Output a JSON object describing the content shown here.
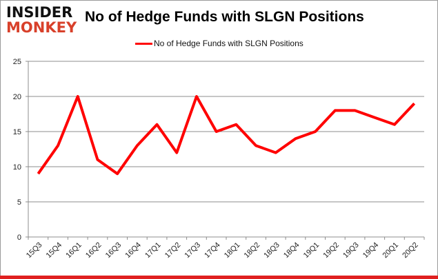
{
  "logo": {
    "line1": "INSIDER",
    "line2": "MONKEY"
  },
  "chart_data": {
    "type": "line",
    "title": "No of Hedge Funds with SLGN Positions",
    "categories": [
      "15Q3",
      "15Q4",
      "16Q1",
      "16Q2",
      "16Q3",
      "16Q4",
      "17Q1",
      "17Q2",
      "17Q3",
      "17Q4",
      "18Q1",
      "18Q2",
      "18Q3",
      "18Q4",
      "19Q1",
      "19Q2",
      "19Q3",
      "19Q4",
      "20Q1",
      "20Q2"
    ],
    "series": [
      {
        "name": "No of Hedge Funds with SLGN Positions",
        "color": "#ff0000",
        "values": [
          9,
          13,
          20,
          11,
          9,
          13,
          16,
          12,
          20,
          15,
          16,
          13,
          12,
          14,
          15,
          18,
          18,
          17,
          16,
          19
        ]
      }
    ],
    "ylim": [
      0,
      25
    ],
    "yticks": [
      0,
      5,
      10,
      15,
      20,
      25
    ],
    "grid": true,
    "legend": "top-center",
    "xlabel": "",
    "ylabel": ""
  }
}
